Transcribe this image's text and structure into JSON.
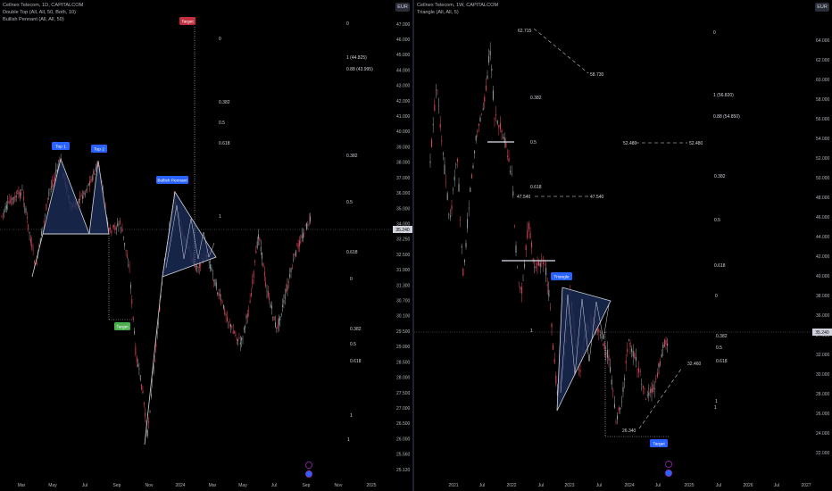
{
  "colors": {
    "up": "#9aa3a6",
    "down": "#e0485d",
    "accent": "#2962ff",
    "target_red": "#c2303f",
    "target_green": "#4caf50",
    "pattern_fill": "#1a2a55",
    "pattern_line": "#d1d4dc"
  },
  "left": {
    "title": "Cellnex Telecom, 1D, CAPITALCOM",
    "indicators": [
      "Double Top (All, All, 50, Both, 10)",
      "Bullish Pennant (All, All, 50)"
    ],
    "currency": "EUR",
    "last_price": "35.240",
    "x_labels": [
      "Mar",
      "May",
      "Jul",
      "Sep",
      "Nov",
      "2024",
      "Mar",
      "May",
      "Jul",
      "Sep",
      "Nov",
      "2025"
    ],
    "y_labels": [
      "47.000",
      "46.000",
      "45.000",
      "44.000",
      "43.000",
      "42.000",
      "41.000",
      "40.000",
      "39.000",
      "38.000",
      "37.000",
      "36.000",
      "35.000",
      "34.000",
      "33.250",
      "32.500",
      "31.900",
      "31.300",
      "30.700",
      "30.100",
      "29.500",
      "29.000",
      "28.500",
      "28.000",
      "27.500",
      "27.000",
      "26.500",
      "26.000",
      "25.560",
      "25.120"
    ],
    "labels": {
      "top1": "Top 1",
      "top2": "Top 2",
      "pennant": "Bullish Pennant",
      "target_up": "Target",
      "target_down": "Target"
    },
    "fib_a": [
      "0",
      "0.382",
      "0.5",
      "0.618",
      "1"
    ],
    "fib_b": [
      "0",
      "1 (44.825)",
      "0.88 (43.995)",
      "0.382",
      "0.5",
      "0.618",
      "0",
      "0.382",
      "0.5",
      "0.618",
      "1",
      "1"
    ]
  },
  "right": {
    "title": "Cellnex Telecom, 1W, CAPITALCOM",
    "indicators": [
      "Triangle (All, All, 5)"
    ],
    "currency": "EUR",
    "last_price": "35.240",
    "x_labels": [
      "2021",
      "Jul",
      "2022",
      "Jul",
      "2023",
      "Jul",
      "2024",
      "Jul",
      "2025",
      "Jul",
      "2026",
      "Jul",
      "2027"
    ],
    "y_labels": [
      "64.000",
      "62.000",
      "60.000",
      "58.000",
      "56.000",
      "54.000",
      "52.000",
      "50.000",
      "48.000",
      "46.000",
      "44.000",
      "42.000",
      "40.000",
      "38.000",
      "36.000",
      "34.000",
      "32.000",
      "30.000",
      "28.000",
      "26.000",
      "24.000",
      "22.000"
    ],
    "labels": {
      "triangle": "Triangle",
      "target": "Target"
    },
    "price_labels": [
      "62.715",
      "58.730",
      "52.480",
      "52.480",
      "47.540",
      "47.540",
      "26.340",
      "32.460"
    ],
    "fib_a": [
      "0.382",
      "0.5",
      "0.618",
      "1"
    ],
    "fib_b": [
      "0",
      "1 (56.820)",
      "0.88 (54.850)",
      "0.382",
      "0.5",
      "0.618",
      "0",
      "0.382",
      "0.5",
      "0.618",
      "1",
      "1"
    ]
  }
}
